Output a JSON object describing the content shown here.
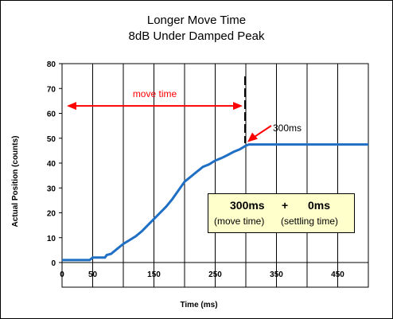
{
  "chart_data": {
    "type": "line",
    "title": "Longer Move Time",
    "subtitle": "8dB Under Damped Peak",
    "xlabel": "Time (ms)",
    "ylabel": "Actual Position (counts)",
    "xlim": [
      0,
      500
    ],
    "ylim": [
      0,
      80
    ],
    "x_ticks": [
      0,
      50,
      150,
      250,
      350,
      450
    ],
    "x_tick_labels": [
      "0",
      "50",
      "150",
      "250",
      "350",
      "450"
    ],
    "y_ticks": [
      0,
      10,
      20,
      30,
      40,
      50,
      60,
      70,
      80
    ],
    "y_tick_labels": [
      "0",
      "10",
      "20",
      "30",
      "40",
      "50",
      "60",
      "70",
      "80"
    ],
    "grid": "vertical-only",
    "line_color": "#1f6fc4",
    "series": [
      {
        "x": [
          0,
          35,
          45,
          50,
          70,
          73,
          80,
          90,
          100,
          110,
          120,
          130,
          140,
          150,
          160,
          170,
          180,
          190,
          200,
          210,
          220,
          225,
          230,
          240,
          250,
          260,
          270,
          280,
          290,
          300,
          305,
          500
        ],
        "y": [
          1,
          1,
          1,
          2,
          2,
          3,
          3.5,
          5.5,
          7.5,
          9,
          10.5,
          12.5,
          15,
          17.5,
          20,
          22.5,
          25.5,
          29,
          32.5,
          34.5,
          36.5,
          37.5,
          38.5,
          39.5,
          41,
          42,
          43.2,
          44.5,
          45.5,
          47,
          47.5,
          47.5
        ]
      }
    ],
    "annotations": {
      "move_time_label": "move time",
      "move_time_color": "#ff0000",
      "move_time_range": [
        0,
        300
      ],
      "move_time_y": 63,
      "end_marker_x": 300,
      "end_label": "300ms",
      "end_marker_y_range": [
        48,
        75
      ],
      "end_point": [
        300,
        47.5
      ],
      "box_line1_left": "300ms",
      "box_line1_mid": "+",
      "box_line1_right": "0ms",
      "box_line2_left": "(move time)",
      "box_line2_right": "(settling time)",
      "box_color": "#ffffcc"
    }
  }
}
